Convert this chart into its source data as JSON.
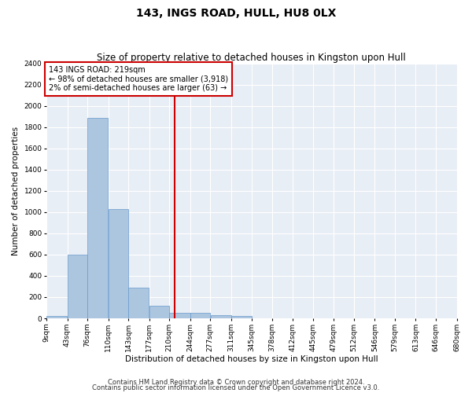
{
  "title": "143, INGS ROAD, HULL, HU8 0LX",
  "subtitle": "Size of property relative to detached houses in Kingston upon Hull",
  "xlabel": "Distribution of detached houses by size in Kingston upon Hull",
  "ylabel": "Number of detached properties",
  "footnote1": "Contains HM Land Registry data © Crown copyright and database right 2024.",
  "footnote2": "Contains public sector information licensed under the Open Government Licence v3.0.",
  "annotation_line1": "143 INGS ROAD: 219sqm",
  "annotation_line2": "← 98% of detached houses are smaller (3,918)",
  "annotation_line3": "2% of semi-detached houses are larger (63) →",
  "bar_color": "#adc6e0",
  "bar_edge_color": "#6699cc",
  "vline_color": "#cc0000",
  "annotation_box_edge": "#cc0000",
  "annotation_box_face": "#ffffff",
  "bins": [
    9,
    43,
    76,
    110,
    143,
    177,
    210,
    244,
    277,
    311,
    345,
    378,
    412,
    445,
    479,
    512,
    546,
    579,
    613,
    646,
    680
  ],
  "bin_labels": [
    "9sqm",
    "43sqm",
    "76sqm",
    "110sqm",
    "143sqm",
    "177sqm",
    "210sqm",
    "244sqm",
    "277sqm",
    "311sqm",
    "345sqm",
    "378sqm",
    "412sqm",
    "445sqm",
    "479sqm",
    "512sqm",
    "546sqm",
    "579sqm",
    "613sqm",
    "646sqm",
    "680sqm"
  ],
  "bar_heights": [
    20,
    600,
    1890,
    1030,
    290,
    120,
    50,
    50,
    30,
    20,
    0,
    0,
    0,
    0,
    0,
    0,
    0,
    0,
    0,
    0
  ],
  "vline_x": 219,
  "ylim": [
    0,
    2400
  ],
  "yticks": [
    0,
    200,
    400,
    600,
    800,
    1000,
    1200,
    1400,
    1600,
    1800,
    2000,
    2200,
    2400
  ],
  "background_color": "#e8eef5",
  "grid_color": "#ffffff",
  "fig_background": "#ffffff",
  "title_fontsize": 10,
  "subtitle_fontsize": 8.5,
  "axis_label_fontsize": 7.5,
  "tick_fontsize": 6.5,
  "annotation_fontsize": 7,
  "footnote_fontsize": 6
}
